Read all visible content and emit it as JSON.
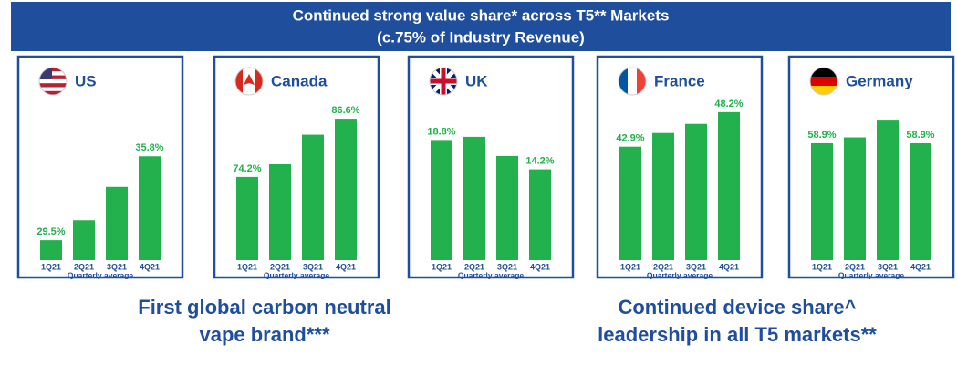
{
  "title": "Continued strong value share* across T5** Markets",
  "subtitle": "(c.75% of Industry Revenue)",
  "chart_data": [
    {
      "type": "bar",
      "title": "US",
      "categories": [
        "1Q21",
        "2Q21",
        "3Q21",
        "4Q21"
      ],
      "values": [
        29.5,
        31.0,
        33.5,
        35.8
      ],
      "value_labels": [
        "29.5%",
        null,
        null,
        "35.8%"
      ],
      "x_label": "Quarterly average",
      "color": "#22b14c",
      "ylim": [
        28,
        40
      ]
    },
    {
      "type": "bar",
      "title": "Canada",
      "categories": [
        "1Q21",
        "2Q21",
        "3Q21",
        "4Q21"
      ],
      "values": [
        74.2,
        76.9,
        83.2,
        86.6
      ],
      "value_labels": [
        "74.2%",
        null,
        null,
        "86.6%"
      ],
      "x_label": "Quarterly average",
      "color": "#22b14c",
      "ylim": [
        56.5,
        90.5
      ]
    },
    {
      "type": "bar",
      "title": "UK",
      "categories": [
        "1Q21",
        "2Q21",
        "3Q21",
        "4Q21"
      ],
      "values": [
        18.8,
        19.3,
        16.3,
        14.2
      ],
      "value_labels": [
        "18.8%",
        null,
        null,
        "14.2%"
      ],
      "x_label": "Quarterly average",
      "color": "#22b14c",
      "ylim": [
        0,
        25
      ]
    },
    {
      "type": "bar",
      "title": "France",
      "categories": [
        "1Q21",
        "2Q21",
        "3Q21",
        "4Q21"
      ],
      "values": [
        42.9,
        45.0,
        46.4,
        48.2
      ],
      "value_labels": [
        "42.9%",
        null,
        null,
        "48.2%"
      ],
      "x_label": "Quarterly average",
      "color": "#22b14c",
      "ylim": [
        25.5,
        50
      ]
    },
    {
      "type": "bar",
      "title": "Germany",
      "categories": [
        "1Q21",
        "2Q21",
        "3Q21",
        "4Q21"
      ],
      "values": [
        58.9,
        59.6,
        61.6,
        58.9
      ],
      "value_labels": [
        "58.9%",
        null,
        null,
        "58.9%"
      ],
      "x_label": "Quarterly average",
      "color": "#22b14c",
      "ylim": [
        45,
        64
      ]
    }
  ],
  "footer_left": [
    "First global carbon neutral",
    "vape brand***"
  ],
  "footer_right": [
    "Continued device share^",
    "leadership in all T5 markets**"
  ]
}
